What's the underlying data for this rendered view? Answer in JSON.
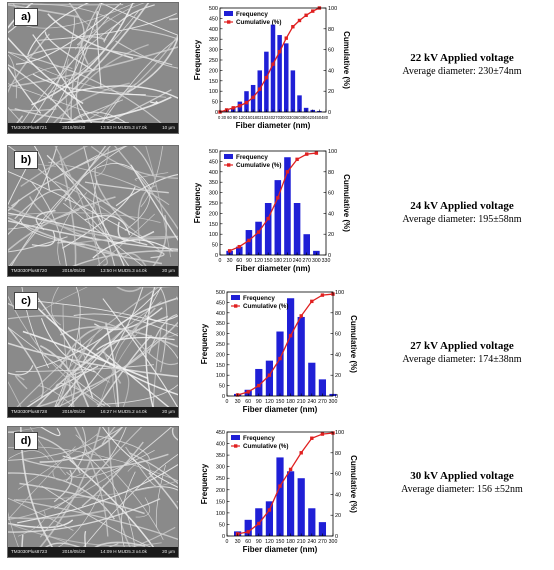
{
  "colors": {
    "frequency": "#1f1fd6",
    "cumulative": "#e02020"
  },
  "panels": [
    {
      "label": "a)",
      "sem_footer": [
        "TM3030Plus8721",
        "2019/05/20",
        "13:53 H MUD5.3 x7.0k",
        "10 μm"
      ],
      "caption_title": "22 kV Applied voltage",
      "caption_sub": "Average diameter: 230±74nm",
      "chart_data": {
        "type": "bar",
        "xlabel": "Fiber diameter (nm)",
        "ylabel": "Frequency",
        "y2label": "Cumulative (%)",
        "legend": [
          "Frequency",
          "Cumulative (%)"
        ],
        "categories": [
          "0",
          "30",
          "60",
          "90",
          "120",
          "150",
          "180",
          "210",
          "240",
          "270",
          "300",
          "330",
          "360",
          "390",
          "420",
          "450",
          "480"
        ],
        "x_tick_text": "0 30 60 90 120150180210240270300330360390420450480",
        "series": [
          {
            "name": "Frequency",
            "type": "bar",
            "x": [
              30,
              60,
              90,
              120,
              150,
              180,
              210,
              240,
              270,
              300,
              330,
              360,
              390,
              420,
              450
            ],
            "values": [
              10,
              20,
              50,
              100,
              130,
              200,
              290,
              420,
              370,
              330,
              200,
              80,
              20,
              10,
              5
            ]
          },
          {
            "name": "Cumulative (%)",
            "type": "line",
            "axis": "right",
            "x": [
              0,
              30,
              60,
              90,
              120,
              150,
              180,
              210,
              240,
              270,
              300,
              330,
              360,
              390,
              420,
              450
            ],
            "values": [
              0,
              2,
              4,
              6,
              9,
              14,
              22,
              33,
              46,
              58,
              71,
              82,
              88,
              93,
              97,
              100
            ]
          }
        ],
        "ylim": [
          0,
          500
        ],
        "yticks": [
          0,
          50,
          100,
          150,
          200,
          250,
          300,
          350,
          400,
          450,
          500
        ],
        "y2lim": [
          0,
          100
        ],
        "y2ticks": [
          0,
          20,
          40,
          60,
          80,
          100
        ],
        "xlim": [
          0,
          480
        ]
      }
    },
    {
      "label": "b)",
      "sem_footer": [
        "TM3030Plus8720",
        "2019/05/20",
        "13:50 H MUD5.3 x4.0k",
        "20 μm"
      ],
      "caption_title": "24 kV Applied voltage",
      "caption_sub": "Average diameter: 195±58nm",
      "chart_data": {
        "type": "bar",
        "xlabel": "Fiber diameter (nm)",
        "ylabel": "Frequency",
        "y2label": "Cumulative (%)",
        "legend": [
          "Frequency",
          "Cumulative (%)"
        ],
        "categories": [
          "0",
          "30",
          "60",
          "90",
          "120",
          "150",
          "180",
          "210",
          "240",
          "270",
          "300",
          "330"
        ],
        "series": [
          {
            "name": "Frequency",
            "type": "bar",
            "x": [
              30,
              60,
              90,
              120,
              150,
              180,
              210,
              240,
              270,
              300
            ],
            "values": [
              20,
              40,
              120,
              160,
              250,
              360,
              470,
              250,
              100,
              20
            ]
          },
          {
            "name": "Cumulative (%)",
            "type": "line",
            "axis": "right",
            "x": [
              30,
              60,
              90,
              120,
              150,
              180,
              210,
              240,
              270,
              300
            ],
            "values": [
              4,
              8,
              14,
              22,
              35,
              55,
              80,
              92,
              97,
              98
            ]
          }
        ],
        "ylim": [
          0,
          500
        ],
        "yticks": [
          0,
          50,
          100,
          150,
          200,
          250,
          300,
          350,
          400,
          450,
          500
        ],
        "y2lim": [
          0,
          100
        ],
        "y2ticks": [
          0,
          20,
          40,
          60,
          80,
          100
        ],
        "xlim": [
          0,
          330
        ]
      }
    },
    {
      "label": "c)",
      "sem_footer": [
        "TM3030Plus8728",
        "2019/05/20",
        "16:27 H MUD5.2 x4.0k",
        "20 μm"
      ],
      "caption_title": "27 kV Applied voltage",
      "caption_sub": "Average diameter: 174±38nm",
      "chart_data": {
        "type": "bar",
        "xlabel": "Fiber diameter (nm)",
        "ylabel": "Frequency",
        "y2label": "Cumulative (%)",
        "legend": [
          "Frequency",
          "Cumulative (%)"
        ],
        "categories": [
          "0",
          "30",
          "60",
          "90",
          "120",
          "150",
          "180",
          "210",
          "240",
          "270",
          "300"
        ],
        "series": [
          {
            "name": "Frequency",
            "type": "bar",
            "x": [
              30,
              60,
              90,
              120,
              150,
              180,
              210,
              240,
              270,
              300
            ],
            "values": [
              10,
              30,
              130,
              170,
              310,
              470,
              380,
              160,
              80,
              10
            ]
          },
          {
            "name": "Cumulative (%)",
            "type": "line",
            "axis": "right",
            "x": [
              30,
              60,
              90,
              120,
              150,
              180,
              210,
              240,
              270,
              300
            ],
            "values": [
              1,
              4,
              10,
              20,
              36,
              58,
              77,
              91,
              97,
              98
            ]
          }
        ],
        "ylim": [
          0,
          500
        ],
        "yticks": [
          0,
          50,
          100,
          150,
          200,
          250,
          300,
          350,
          400,
          450,
          500
        ],
        "y2lim": [
          0,
          100
        ],
        "y2ticks": [
          0,
          20,
          40,
          60,
          80,
          100
        ],
        "xlim": [
          0,
          300
        ]
      }
    },
    {
      "label": "d)",
      "sem_footer": [
        "TM3030Plus8723",
        "2019/05/20",
        "14:09 H MUD5.3 x4.0k",
        "20 μm"
      ],
      "caption_title": "30 kV Applied voltage",
      "caption_sub": "Average diameter: 156 ±52nm",
      "chart_data": {
        "type": "bar",
        "xlabel": "Fiber diameter (nm)",
        "ylabel": "Frequency",
        "y2label": "Cumulative (%)",
        "legend": [
          "Frequency",
          "Cumulative (%)"
        ],
        "categories": [
          "0",
          "30",
          "60",
          "90",
          "120",
          "150",
          "180",
          "210",
          "240",
          "270",
          "300"
        ],
        "series": [
          {
            "name": "Frequency",
            "type": "bar",
            "x": [
              30,
              60,
              90,
              120,
              150,
              180,
              210,
              240,
              270
            ],
            "values": [
              20,
              70,
              120,
              150,
              340,
              280,
              250,
              120,
              60
            ]
          },
          {
            "name": "Cumulative (%)",
            "type": "line",
            "axis": "right",
            "x": [
              30,
              60,
              90,
              120,
              150,
              180,
              210,
              240,
              270,
              300
            ],
            "values": [
              2,
              4,
              12,
              25,
              48,
              64,
              80,
              94,
              98,
              99
            ]
          }
        ],
        "ylim": [
          0,
          450
        ],
        "yticks": [
          0,
          50,
          100,
          150,
          200,
          250,
          300,
          350,
          400,
          450
        ],
        "y2lim": [
          0,
          100
        ],
        "y2ticks": [
          0,
          20,
          40,
          60,
          80,
          100
        ],
        "xlim": [
          0,
          300
        ]
      }
    }
  ]
}
